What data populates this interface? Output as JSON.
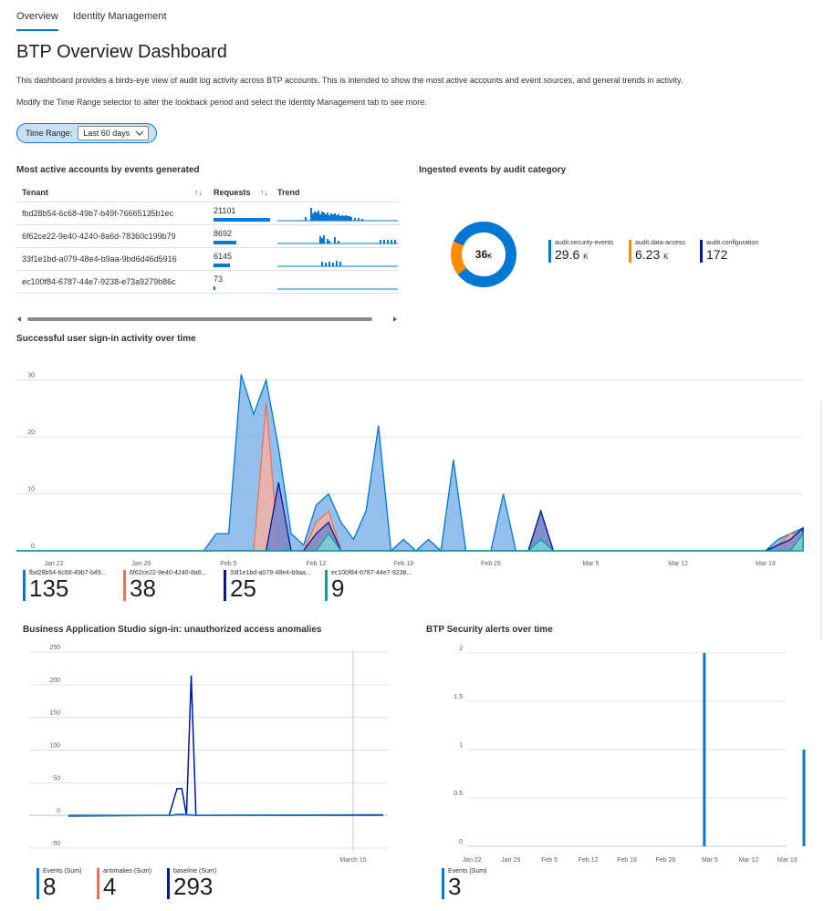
{
  "tabs": [
    {
      "label": "Overview",
      "active": true
    },
    {
      "label": "Identity Management",
      "active": false
    }
  ],
  "title": "BTP Overview Dashboard",
  "description_1": "This dashboard provides a birds-eye view of audit log activity across BTP accounts. This is intended to show the most active accounts and event sources, and general trends in activity.",
  "description_2": "Modify the Time Range selector to alter the lookback period and select the Identity Management tab to see more.",
  "time_range": {
    "label": "Time Range:",
    "value": "Last 60 days",
    "icon": "chevron-down-icon"
  },
  "accounts": {
    "title": "Most active accounts by events generated",
    "columns": [
      "Tenant",
      "Requests",
      "Trend"
    ],
    "sort_icon": "↑↓",
    "rows": [
      {
        "tenant": "fbd28b54-6c68-49b7-b49f-76665135b1ec",
        "requests": "21101",
        "ratio": 1.0
      },
      {
        "tenant": "6f62ce22-9e40-4240-8a6d-78360c199b79",
        "requests": "8692",
        "ratio": 0.41
      },
      {
        "tenant": "33f1e1bd-a079-48e4-b9aa-9bd6d46d5916",
        "requests": "6145",
        "ratio": 0.29
      },
      {
        "tenant": "ec100f84-6787-44e7-9238-e73a9279b86c",
        "requests": "73",
        "ratio": 0.004
      }
    ]
  },
  "ingested": {
    "title": "Ingested events by audit category",
    "total": "36",
    "total_unit": "K",
    "colors": {
      "security": "#0078d4",
      "data": "#ff8c00",
      "config": "#00188f"
    },
    "items": [
      {
        "name": "audit.security-events",
        "value": "29.6",
        "unit": "K"
      },
      {
        "name": "audit.data-access",
        "value": "6.23",
        "unit": "K"
      },
      {
        "name": "audit.configuration",
        "value": "172",
        "unit": ""
      }
    ]
  },
  "signin": {
    "title": "Successful user sign-in activity over time",
    "y_ticks": [
      "30",
      "20",
      "10",
      "0"
    ],
    "x_ticks": [
      "Jan 22",
      "Jan 29",
      "Feb 5",
      "Feb 12",
      "Feb 19",
      "Feb 26",
      "Mar 5",
      "Mar 12",
      "Mar 19"
    ],
    "colors": {
      "a": "#0078d4",
      "b": "#e8735a",
      "c": "#00188f",
      "d": "#00a3a3"
    },
    "legend": [
      {
        "name": "fbd28b54-6c68-49b7-b49...",
        "value": "135"
      },
      {
        "name": "6f62ce22-9e40-4240-8a6...",
        "value": "38"
      },
      {
        "name": "33f1e1bd-a079-48e4-b9aa...",
        "value": "25"
      },
      {
        "name": "ec100f84-6787-44e7-9238...",
        "value": "9"
      }
    ]
  },
  "bas": {
    "title": "Business Application Studio sign-in: unauthorized access anomalies",
    "y_ticks": [
      "250",
      "200",
      "150",
      "100",
      "50",
      "0",
      "-50"
    ],
    "x_label": "March 15",
    "legend": [
      {
        "name": "Events (Sum)",
        "value": "8"
      },
      {
        "name": "anomalies (Sum)",
        "value": "4"
      },
      {
        "name": "baseline (Sum)",
        "value": "293"
      }
    ]
  },
  "alerts": {
    "title": "BTP Security alerts over time",
    "y_ticks": [
      "2",
      "1.5",
      "1",
      "0.5",
      "0"
    ],
    "x_ticks": [
      "Jan 22",
      "Jan 29",
      "Feb 5",
      "Feb 12",
      "Feb 19",
      "Feb 26",
      "Mar 5",
      "Mar 12",
      "Mar 19"
    ],
    "legend": [
      {
        "name": "Events (Sum)",
        "value": "3"
      }
    ]
  },
  "chart_data": [
    {
      "type": "area",
      "title": "Successful user sign-in activity over time",
      "ylim": [
        0,
        33
      ],
      "x_ticks": [
        "Jan 22",
        "Jan 29",
        "Feb 5",
        "Feb 12",
        "Feb 19",
        "Feb 26",
        "Mar 5",
        "Mar 12",
        "Mar 19"
      ],
      "x_days": [
        "2024-01-19",
        "2024-03-22"
      ],
      "series": [
        {
          "name": "fbd28b54-6c68-49b7-b49...",
          "total": 135,
          "points": [
            [
              "2024-01-19",
              0
            ],
            [
              "2024-02-03",
              0
            ],
            [
              "2024-02-04",
              3
            ],
            [
              "2024-02-05",
              3
            ],
            [
              "2024-02-06",
              31
            ],
            [
              "2024-02-07",
              24
            ],
            [
              "2024-02-08",
              30
            ],
            [
              "2024-02-09",
              18
            ],
            [
              "2024-02-10",
              3
            ],
            [
              "2024-02-11",
              1
            ],
            [
              "2024-02-12",
              8
            ],
            [
              "2024-02-13",
              10
            ],
            [
              "2024-02-14",
              5
            ],
            [
              "2024-02-15",
              2
            ],
            [
              "2024-02-16",
              7
            ],
            [
              "2024-02-17",
              22
            ],
            [
              "2024-02-18",
              0
            ],
            [
              "2024-02-19",
              2
            ],
            [
              "2024-02-20",
              0
            ],
            [
              "2024-02-21",
              2
            ],
            [
              "2024-02-22",
              0
            ],
            [
              "2024-02-23",
              16
            ],
            [
              "2024-02-24",
              0
            ],
            [
              "2024-02-26",
              0
            ],
            [
              "2024-02-27",
              10
            ],
            [
              "2024-02-28",
              0
            ],
            [
              "2024-02-29",
              0
            ],
            [
              "2024-03-01",
              7
            ],
            [
              "2024-03-02",
              0
            ],
            [
              "2024-03-19",
              0
            ],
            [
              "2024-03-20",
              2
            ],
            [
              "2024-03-21",
              3
            ],
            [
              "2024-03-22",
              4
            ]
          ]
        },
        {
          "name": "6f62ce22-9e40-4240-8a6...",
          "total": 38,
          "points": [
            [
              "2024-01-19",
              0
            ],
            [
              "2024-02-07",
              0
            ],
            [
              "2024-02-08",
              26
            ],
            [
              "2024-02-09",
              0
            ],
            [
              "2024-02-11",
              0
            ],
            [
              "2024-02-12",
              5
            ],
            [
              "2024-02-13",
              7
            ],
            [
              "2024-02-14",
              0
            ],
            [
              "2024-03-19",
              0
            ],
            [
              "2024-03-20",
              1
            ],
            [
              "2024-03-21",
              3
            ],
            [
              "2024-03-22",
              3
            ]
          ]
        },
        {
          "name": "33f1e1bd-a079-48e4-b9aa...",
          "total": 25,
          "points": [
            [
              "2024-01-19",
              0
            ],
            [
              "2024-02-08",
              0
            ],
            [
              "2024-02-09",
              12
            ],
            [
              "2024-02-10",
              0
            ],
            [
              "2024-02-11",
              0
            ],
            [
              "2024-02-12",
              3
            ],
            [
              "2024-02-13",
              5
            ],
            [
              "2024-02-14",
              0
            ],
            [
              "2024-02-29",
              0
            ],
            [
              "2024-03-01",
              7
            ],
            [
              "2024-03-02",
              0
            ],
            [
              "2024-03-19",
              0
            ],
            [
              "2024-03-20",
              1
            ],
            [
              "2024-03-21",
              2
            ],
            [
              "2024-03-22",
              4
            ]
          ]
        },
        {
          "name": "ec100f84-6787-44e7-9238...",
          "total": 9,
          "points": [
            [
              "2024-01-19",
              0
            ],
            [
              "2024-02-12",
              0
            ],
            [
              "2024-02-13",
              3
            ],
            [
              "2024-02-14",
              0
            ],
            [
              "2024-02-29",
              0
            ],
            [
              "2024-03-01",
              2
            ],
            [
              "2024-03-02",
              0
            ],
            [
              "2024-03-21",
              0
            ],
            [
              "2024-03-22",
              3
            ]
          ]
        }
      ]
    },
    {
      "type": "line",
      "title": "Business Application Studio sign-in: unauthorized access anomalies",
      "ylim": [
        -50,
        250
      ],
      "x_label": "March 15",
      "series": [
        {
          "name": "baseline (Sum)",
          "total": 293,
          "points": [
            [
              0,
              -1
            ],
            [
              0.32,
              0
            ],
            [
              0.345,
              41
            ],
            [
              0.36,
              41
            ],
            [
              0.375,
              0
            ],
            [
              0.39,
              214
            ],
            [
              0.405,
              0
            ],
            [
              1.0,
              1
            ]
          ]
        },
        {
          "name": "anomalies (Sum)",
          "total": 4,
          "points": [
            [
              0,
              0
            ],
            [
              0.33,
              0
            ],
            [
              0.34,
              2
            ],
            [
              0.37,
              2
            ],
            [
              0.38,
              0
            ],
            [
              1.0,
              0
            ]
          ]
        },
        {
          "name": "Events (Sum)",
          "total": 8,
          "points": [
            [
              0,
              0
            ],
            [
              0.33,
              0
            ],
            [
              0.345,
              1
            ],
            [
              0.39,
              1
            ],
            [
              0.4,
              0
            ],
            [
              1.0,
              0
            ]
          ]
        }
      ]
    },
    {
      "type": "bar",
      "title": "BTP Security alerts over time",
      "ylim": [
        0,
        2
      ],
      "x_ticks": [
        "Jan 22",
        "Jan 29",
        "Feb 5",
        "Feb 12",
        "Feb 19",
        "Feb 26",
        "Mar 5",
        "Mar 12",
        "Mar 19"
      ],
      "x_days": [
        "2024-01-19",
        "2024-03-22"
      ],
      "series": [
        {
          "name": "Events (Sum)",
          "points": [
            [
              "2024-03-04",
              2
            ],
            [
              "2024-03-22",
              1
            ]
          ]
        }
      ]
    }
  ]
}
